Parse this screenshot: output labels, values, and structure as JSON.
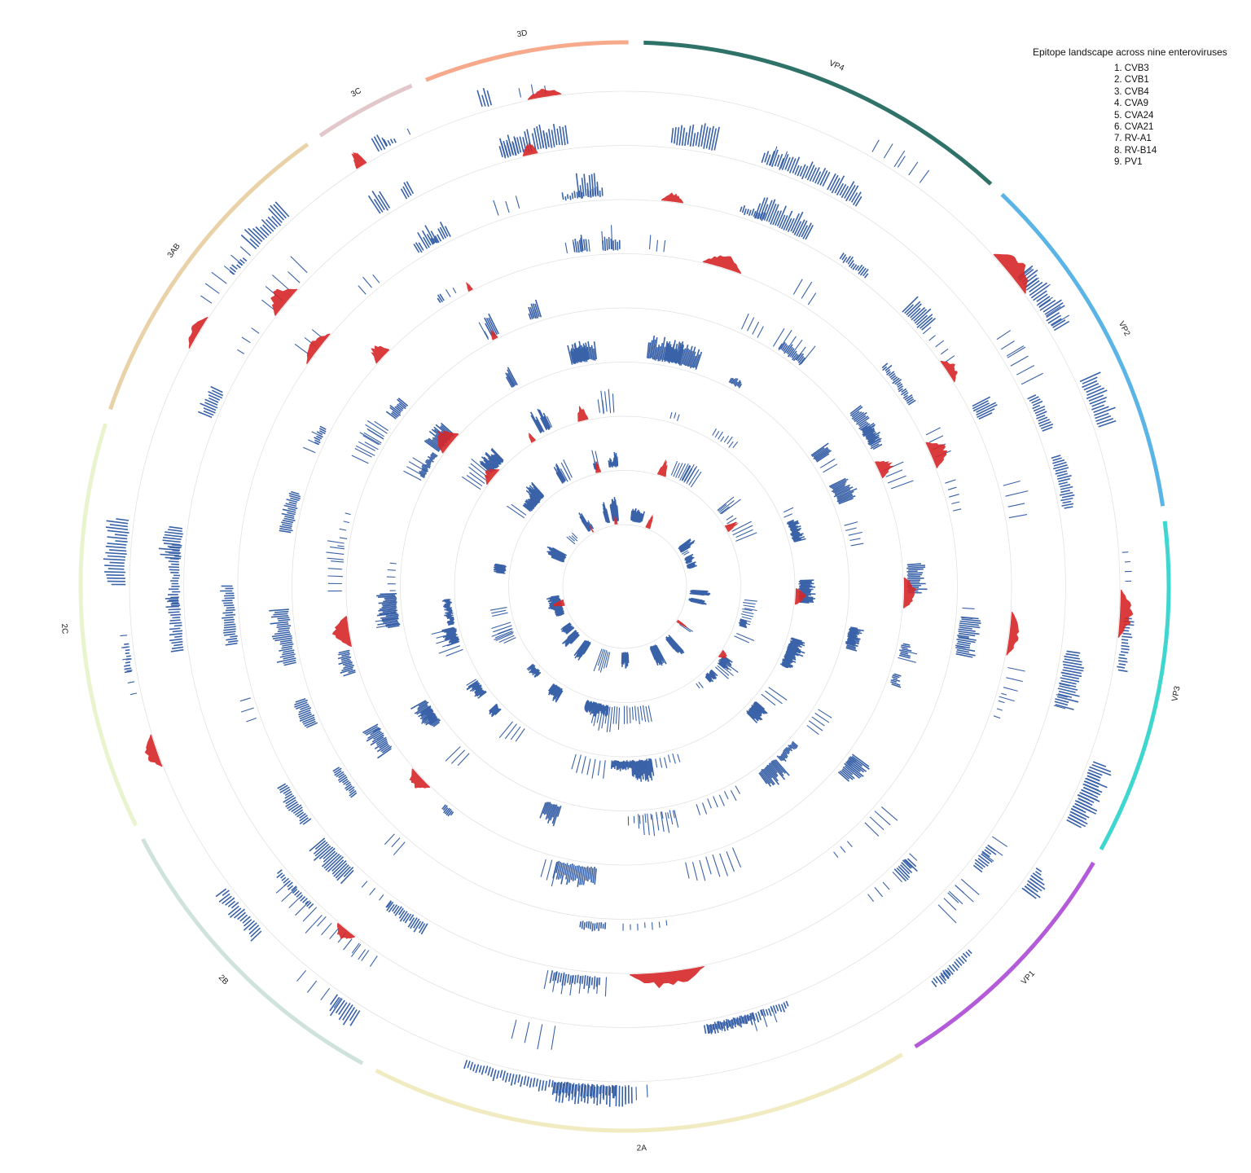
{
  "legend": {
    "title": "Epitope landscape across nine enteroviruses",
    "items": [
      "1. CVB3",
      "2. CVB1",
      "3. CVB4",
      "4. CVA9",
      "5. CVA24",
      "6. CVA21",
      "7. RV-A1",
      "8. RV-B14",
      "9. PV1"
    ]
  },
  "chart_data": {
    "type": "circular-track",
    "title": "Epitope landscape across nine enteroviruses",
    "tracks": [
      "CVB3",
      "CVB1",
      "CVB4",
      "CVA9",
      "CVA24",
      "CVA21",
      "RV-A1",
      "RV-B14",
      "PV1"
    ],
    "segments": [
      {
        "name": "VP4",
        "color": "#2e7268"
      },
      {
        "name": "VP2",
        "color": "#5ab4e5"
      },
      {
        "name": "VP3",
        "color": "#3fd6cf"
      },
      {
        "name": "VP1",
        "color": "#b35bd9"
      },
      {
        "name": "2A",
        "color": "#f1ebc2"
      },
      {
        "name": "2B",
        "color": "#cfe3dc"
      },
      {
        "name": "2C",
        "color": "#e9f4cf"
      },
      {
        "name": "3AB",
        "color": "#ead2a8"
      },
      {
        "name": "3C",
        "color": "#e3c8cb"
      },
      {
        "name": "3D",
        "color": "#f6a98b"
      }
    ],
    "series_colors": {
      "epitope": "#3a62a8",
      "score": "#d62728",
      "grid": "#e2e2e2"
    }
  }
}
